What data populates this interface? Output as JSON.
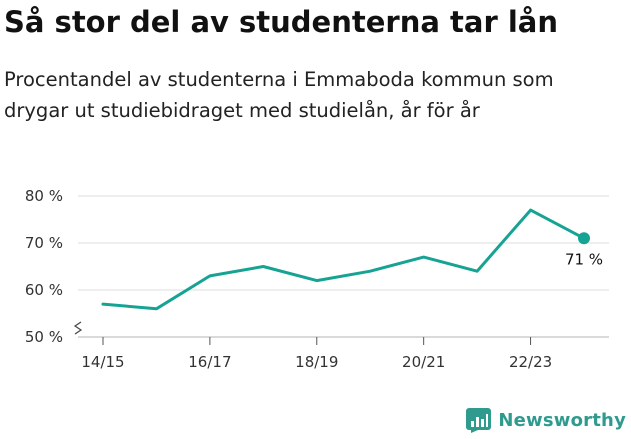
{
  "title": "Så stor del av studenterna tar lån",
  "subtitle": "Procentandel av studenterna i Emmaboda kommun som drygar ut studiebidraget med studielån, år för år",
  "brand": {
    "name": "Newsworthy",
    "icon": "newsworthy-logo-icon",
    "color": "#2f9b8f"
  },
  "chart_data": {
    "type": "line",
    "title": "Så stor del av studenterna tar lån",
    "subtitle": "Procentandel av studenterna i Emmaboda kommun som drygar ut studiebidraget med studielån, år för år",
    "x": [
      "14/15",
      "15/16",
      "16/17",
      "17/18",
      "18/19",
      "19/20",
      "20/21",
      "21/22",
      "22/23",
      "23/24"
    ],
    "series": [
      {
        "values": [
          57,
          56,
          63,
          65,
          62,
          64,
          67,
          64,
          77,
          71
        ],
        "color": "#16a394"
      }
    ],
    "x_tick_labels": [
      "14/15",
      "16/17",
      "18/19",
      "20/21",
      "22/23"
    ],
    "y_ticks": [
      50,
      60,
      70,
      80
    ],
    "y_tick_labels": [
      "50 %",
      "60 %",
      "70 %",
      "80 %"
    ],
    "ylim": [
      50,
      80
    ],
    "y_axis_break": true,
    "grid": true,
    "last_value_label": "71 %",
    "xlabel": "",
    "ylabel": ""
  }
}
